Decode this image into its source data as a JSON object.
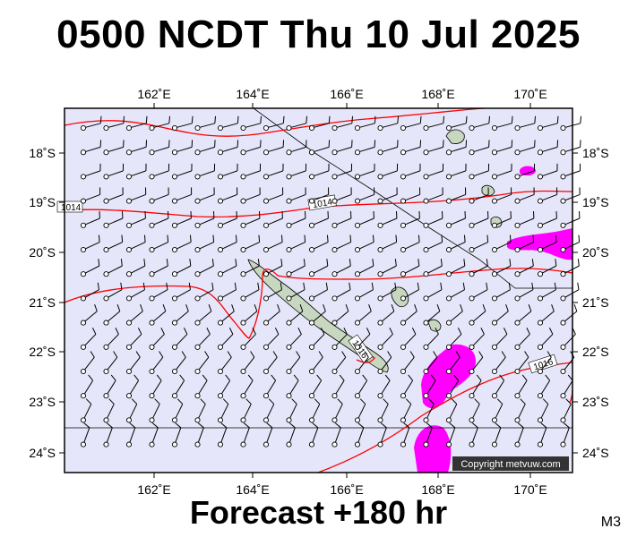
{
  "header": {
    "title": "0500 NCDT Thu 10 Jul 2025"
  },
  "footer": {
    "forecast": "Forecast +180 hr",
    "model": "M3"
  },
  "map": {
    "lon_ticks": [
      "162˚E",
      "164˚E",
      "166˚E",
      "168˚E",
      "170˚E"
    ],
    "lat_ticks": [
      "18˚S",
      "19˚S",
      "20˚S",
      "21˚S",
      "22˚S",
      "23˚S",
      "24˚S"
    ],
    "isobar_labels": [
      "1014",
      "1014",
      "1016",
      "1016"
    ],
    "copyright": "Copyright metvuw.com",
    "colors": {
      "ocean": "#e6e6fa",
      "isobar": "#ff0000",
      "precip": "#ff00ff",
      "land": "#c8d8c0",
      "border": "#000000"
    }
  }
}
